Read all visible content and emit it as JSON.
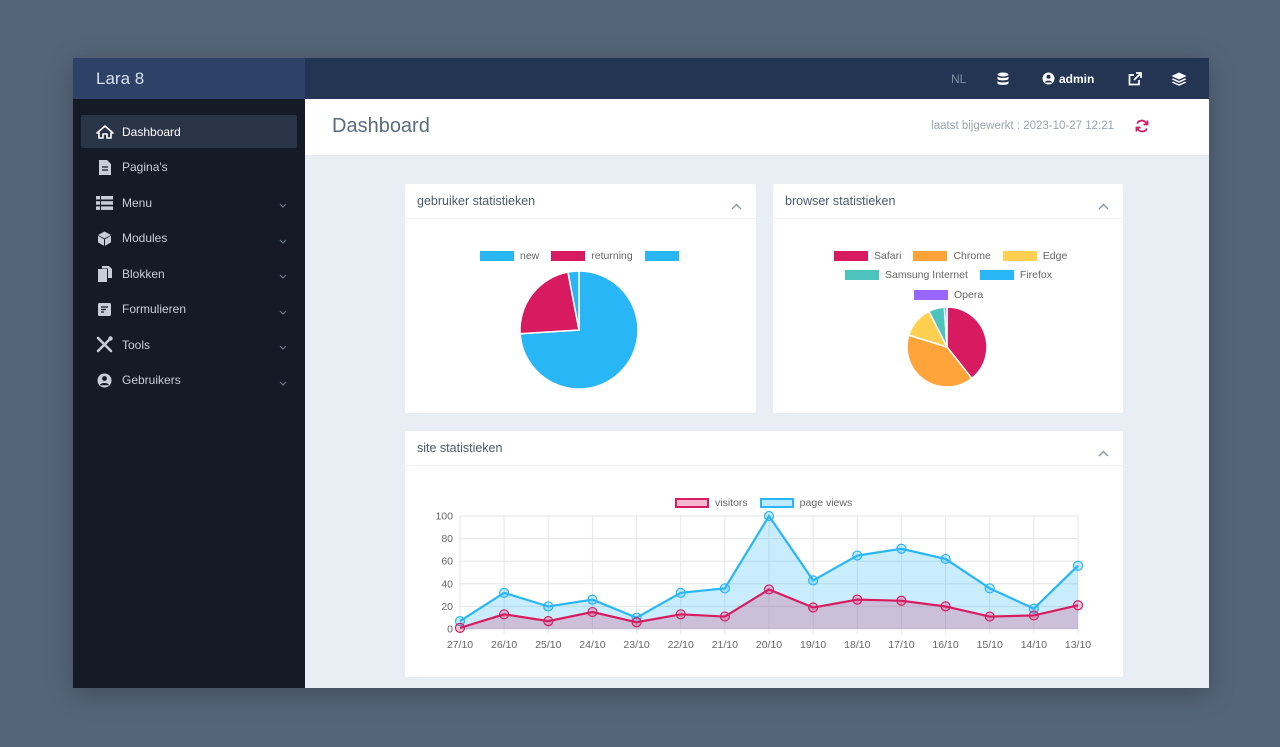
{
  "app": {
    "brand": "Lara 8"
  },
  "topbar": {
    "lang": "NL",
    "user": "admin"
  },
  "sidebar": {
    "items": [
      {
        "label": "Dashboard",
        "icon": "home-icon",
        "active": true,
        "expandable": false
      },
      {
        "label": "Pagina's",
        "icon": "file-icon",
        "active": false,
        "expandable": false
      },
      {
        "label": "Menu",
        "icon": "list-icon",
        "active": false,
        "expandable": true
      },
      {
        "label": "Modules",
        "icon": "cube-icon",
        "active": false,
        "expandable": true
      },
      {
        "label": "Blokken",
        "icon": "copy-icon",
        "active": false,
        "expandable": true
      },
      {
        "label": "Formulieren",
        "icon": "form-icon",
        "active": false,
        "expandable": true
      },
      {
        "label": "Tools",
        "icon": "tools-icon",
        "active": false,
        "expandable": true
      },
      {
        "label": "Gebruikers",
        "icon": "user-circle-icon",
        "active": false,
        "expandable": true
      }
    ]
  },
  "header": {
    "title": "Dashboard",
    "updated": "laatst bijgewerkt : 2023-10-27 12:21"
  },
  "cards": {
    "users": {
      "title": "gebruiker statistieken"
    },
    "browsers": {
      "title": "browser statistieken"
    },
    "site": {
      "title": "site statistieken"
    }
  },
  "colors": {
    "accent": "#d81b60",
    "blue": "#29b6f6",
    "sidebar": "#141b27",
    "topbar": "#243453"
  },
  "chart_data": [
    {
      "type": "pie",
      "labels": [
        "new",
        "returning",
        ""
      ],
      "colors": [
        "#29b6f6",
        "#d81b60",
        "#29b6f6"
      ],
      "values": [
        74,
        23,
        3
      ]
    },
    {
      "type": "pie",
      "labels": [
        "Safari",
        "Chrome",
        "Edge",
        "Samsung Internet",
        "Firefox",
        "Opera"
      ],
      "colors": [
        "#d81b60",
        "#ffa43a",
        "#ffd04f",
        "#4dc3bd",
        "#29b6f6",
        "#9966ff"
      ],
      "values": [
        37,
        38,
        12,
        6,
        1,
        0
      ]
    },
    {
      "type": "area",
      "categories": [
        "27/10",
        "26/10",
        "25/10",
        "24/10",
        "23/10",
        "22/10",
        "21/10",
        "20/10",
        "19/10",
        "18/10",
        "17/10",
        "16/10",
        "15/10",
        "14/10",
        "13/10"
      ],
      "series": [
        {
          "name": "visitors",
          "color": "#d81b60",
          "values": [
            1,
            13,
            7,
            15,
            6,
            13,
            11,
            35,
            19,
            26,
            25,
            20,
            11,
            12,
            21
          ]
        },
        {
          "name": "page views",
          "color": "#29b6f6",
          "values": [
            7,
            32,
            20,
            26,
            10,
            32,
            36,
            100,
            43,
            65,
            71,
            62,
            36,
            18,
            56
          ]
        }
      ],
      "ylim": [
        0,
        100
      ],
      "yticks": [
        0,
        20,
        40,
        60,
        80,
        100
      ],
      "grid": true,
      "legend": "top"
    }
  ]
}
